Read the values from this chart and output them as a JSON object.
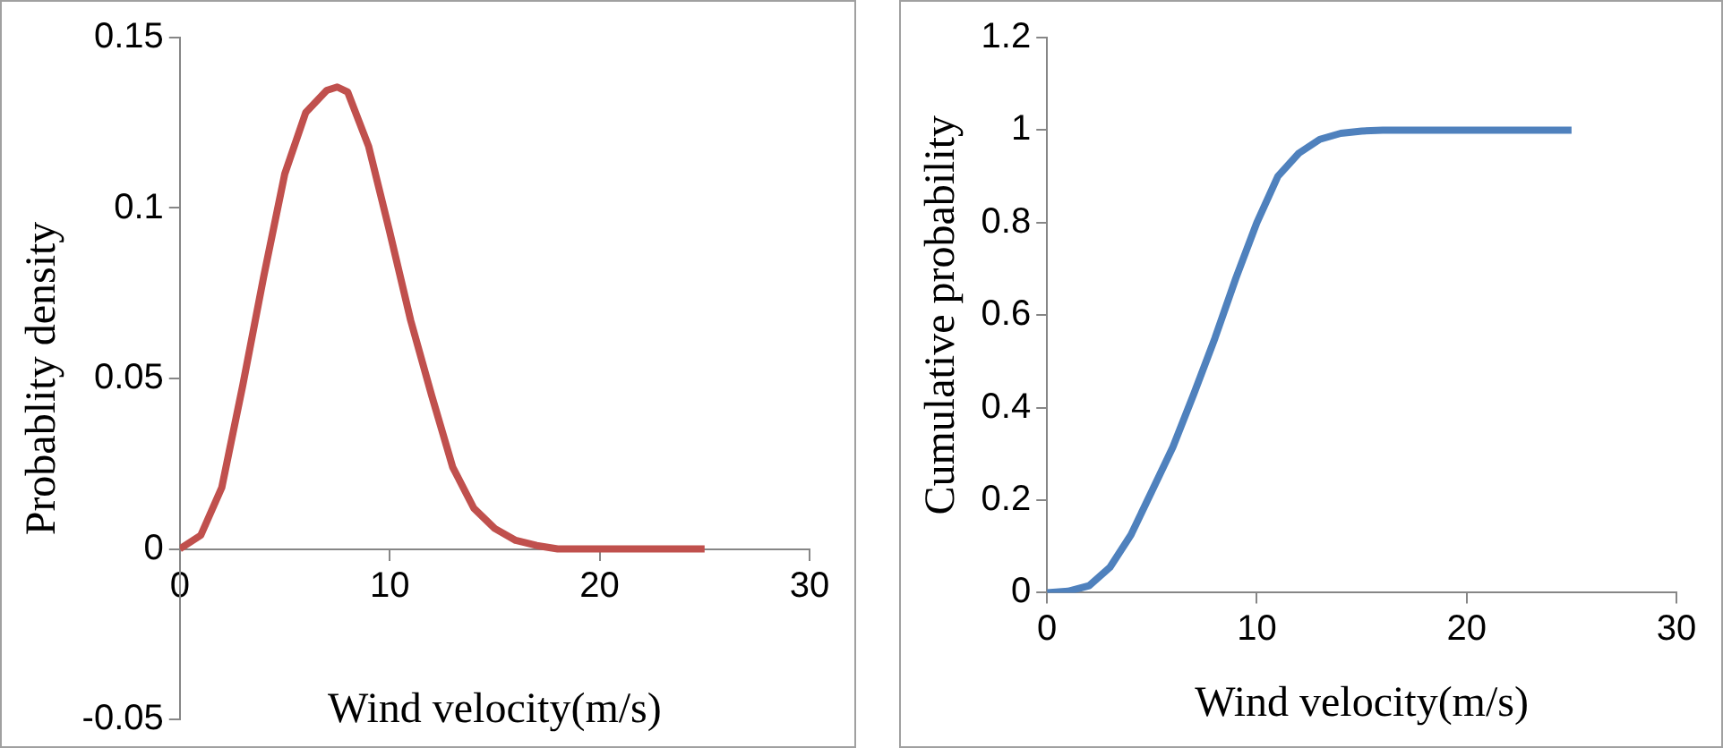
{
  "chart_data": [
    {
      "type": "line",
      "ylabel": "Probablity density",
      "xlabel": "Wind velocity(m/s)",
      "color": "#c0504d",
      "marker": "none",
      "x": [
        0,
        1,
        2,
        3,
        4,
        5,
        6,
        7,
        7.5,
        8,
        9,
        10,
        11,
        12,
        13,
        14,
        15,
        16,
        17,
        18,
        19,
        20,
        25
      ],
      "values": [
        0,
        0.004,
        0.018,
        0.048,
        0.08,
        0.11,
        0.128,
        0.1345,
        0.1355,
        0.134,
        0.118,
        0.093,
        0.067,
        0.045,
        0.024,
        0.012,
        0.006,
        0.0025,
        0.001,
        0,
        0,
        0,
        0
      ],
      "xlim": [
        0,
        30
      ],
      "xticks": [
        0,
        10,
        20,
        30
      ],
      "ylim": [
        -0.05,
        0.15
      ],
      "yticks": [
        -0.05,
        0,
        0.05,
        0.1,
        0.15
      ]
    },
    {
      "type": "line",
      "ylabel": "Cumulative probability",
      "xlabel": "Wind velocity(m/s)",
      "color": "#4f81bd",
      "marker": "none",
      "x": [
        0,
        1,
        2,
        3,
        4,
        5,
        6,
        7,
        8,
        9,
        10,
        11,
        12,
        13,
        14,
        15,
        16,
        18,
        20,
        25
      ],
      "values": [
        0,
        0.003,
        0.015,
        0.055,
        0.125,
        0.22,
        0.315,
        0.43,
        0.55,
        0.68,
        0.8,
        0.9,
        0.95,
        0.98,
        0.993,
        0.998,
        1,
        1,
        1,
        1
      ],
      "xlim": [
        0,
        30
      ],
      "xticks": [
        0,
        10,
        20,
        30
      ],
      "ylim": [
        0,
        1.2
      ],
      "yticks": [
        0,
        0.2,
        0.4,
        0.6,
        0.8,
        1,
        1.2
      ]
    }
  ]
}
